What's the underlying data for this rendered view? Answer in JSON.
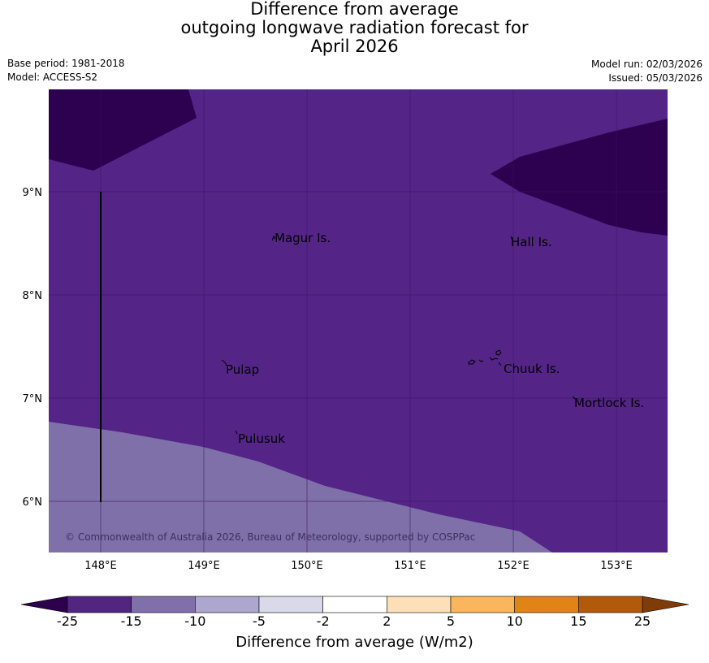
{
  "title": {
    "line1": "Difference from average",
    "line2": "outgoing longwave radiation forecast for",
    "line3": "April 2026"
  },
  "meta": {
    "base_period": "Base period: 1981-2018",
    "model": "Model: ACCESS-S2",
    "model_run": "Model run: 02/03/2026",
    "issued": "Issued: 05/03/2026"
  },
  "map": {
    "lat_labels": [
      "9°N",
      "8°N",
      "7°N",
      "6°N"
    ],
    "lon_labels": [
      "148°E",
      "149°E",
      "150°E",
      "151°E",
      "152°E",
      "153°E"
    ],
    "places": [
      "Magur Is.",
      "Hall Is.",
      "Pulap",
      "Chuuk Is.",
      "Mortlock Is.",
      "Pulusuk"
    ],
    "copyright": "© Commonwealth of Australia 2026, Bureau of Meteorology, supported by COSPPac"
  },
  "colorbar": {
    "title": "Difference from average (W/m2)",
    "tick_labels": [
      "-25",
      "-15",
      "-10",
      "-5",
      "-2",
      "2",
      "5",
      "10",
      "15",
      "25"
    ],
    "bin_colors": [
      "#52267f",
      "#7f70a9",
      "#ada6cf",
      "#d9d9ea",
      "#ffffff",
      "#fde0b8",
      "#fab65c",
      "#e08418",
      "#b25a0c"
    ],
    "under_color": "#2d004b",
    "over_color": "#7f3b08"
  },
  "colors": {
    "deep_purple": "#2d0050",
    "purple": "#542486",
    "light_purple": "#7f70a9",
    "grid": "#3a1460"
  }
}
